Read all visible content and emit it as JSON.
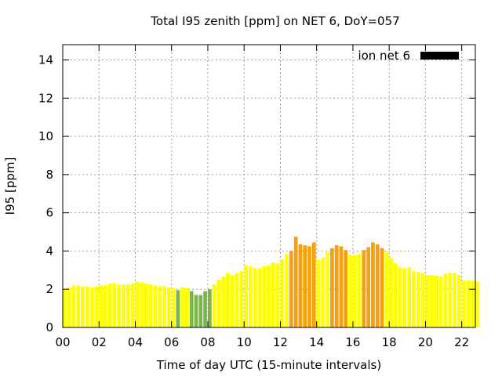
{
  "chart_data": {
    "type": "bar",
    "title": "Total I95 zenith [ppm] on NET 6, DoY=057",
    "xlabel": "Time of day UTC (15-minute intervals)",
    "ylabel": "I95 [ppm]",
    "xlim": [
      0,
      22.75
    ],
    "ylim": [
      0,
      14.8
    ],
    "x_ticks": [
      "00",
      "02",
      "04",
      "06",
      "08",
      "10",
      "12",
      "14",
      "16",
      "18",
      "20",
      "22"
    ],
    "y_ticks": [
      "0",
      "2",
      "4",
      "6",
      "8",
      "10",
      "12",
      "14"
    ],
    "grid": true,
    "legend": {
      "label": "ion net 6",
      "position": "top-right",
      "color": "#000000"
    },
    "colors": {
      "green": "#7ab648",
      "yellow": "#ffff00",
      "orange": "#f5a00f"
    },
    "x_start_hours": 0,
    "bar_interval_hours": 0.25,
    "values": [
      2.0,
      2.1,
      2.2,
      2.2,
      2.15,
      2.15,
      2.1,
      2.15,
      2.2,
      2.2,
      2.3,
      2.3,
      2.25,
      2.25,
      2.25,
      2.3,
      2.4,
      2.35,
      2.3,
      2.25,
      2.2,
      2.15,
      2.15,
      2.1,
      2.05,
      1.95,
      2.1,
      2.05,
      1.9,
      1.7,
      1.7,
      1.9,
      2.0,
      2.25,
      2.5,
      2.65,
      2.85,
      2.75,
      2.85,
      2.95,
      3.25,
      3.2,
      3.1,
      3.1,
      3.2,
      3.25,
      3.4,
      3.35,
      3.55,
      3.85,
      4.0,
      4.75,
      4.35,
      4.3,
      4.25,
      4.45,
      3.55,
      3.65,
      3.95,
      4.15,
      4.3,
      4.25,
      4.05,
      3.8,
      3.8,
      3.85,
      4.05,
      4.2,
      4.45,
      4.35,
      4.15,
      3.95,
      3.65,
      3.35,
      3.15,
      3.1,
      3.15,
      2.95,
      2.9,
      2.85,
      2.75,
      2.75,
      2.7,
      2.65,
      2.8,
      2.85,
      2.85,
      2.75,
      2.45,
      2.45,
      2.45,
      2.4
    ],
    "bar_colors": [
      "yellow",
      "yellow",
      "yellow",
      "yellow",
      "yellow",
      "yellow",
      "yellow",
      "yellow",
      "yellow",
      "yellow",
      "yellow",
      "yellow",
      "yellow",
      "yellow",
      "yellow",
      "yellow",
      "yellow",
      "yellow",
      "yellow",
      "yellow",
      "yellow",
      "yellow",
      "yellow",
      "yellow",
      "yellow",
      "green",
      "yellow",
      "yellow",
      "green",
      "green",
      "green",
      "green",
      "green",
      "yellow",
      "yellow",
      "yellow",
      "yellow",
      "yellow",
      "yellow",
      "yellow",
      "yellow",
      "yellow",
      "yellow",
      "yellow",
      "yellow",
      "yellow",
      "yellow",
      "yellow",
      "yellow",
      "yellow",
      "orange",
      "orange",
      "orange",
      "orange",
      "orange",
      "orange",
      "yellow",
      "yellow",
      "yellow",
      "orange",
      "orange",
      "orange",
      "orange",
      "yellow",
      "yellow",
      "yellow",
      "orange",
      "orange",
      "orange",
      "orange",
      "orange",
      "yellow",
      "yellow",
      "yellow",
      "yellow",
      "yellow",
      "yellow",
      "yellow",
      "yellow",
      "yellow",
      "yellow",
      "yellow",
      "yellow",
      "yellow",
      "yellow",
      "yellow",
      "yellow",
      "yellow",
      "yellow",
      "yellow",
      "yellow",
      "yellow"
    ]
  }
}
